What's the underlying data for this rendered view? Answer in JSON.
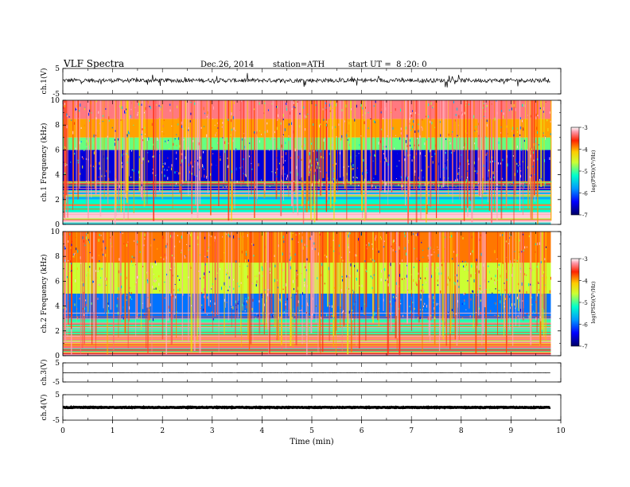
{
  "header": {
    "title": "VLF Spectra",
    "date": "Dec.26, 2014",
    "station": "station=ATH",
    "start": "start UT =  8 :20: 0"
  },
  "palette": {
    "low": "#000066",
    "mid_low": "#0033ff",
    "mid": "#00ffcc",
    "mid_high": "#ccff33",
    "high": "#ff2200",
    "top": "#ffffff"
  },
  "chart_data": [
    {
      "type": "line",
      "name": "ch1-waveform",
      "ylabel": "ch.1(V)",
      "ylim": [
        -5,
        5
      ],
      "yticks": [
        "5",
        "-5"
      ],
      "baseline": 0.3,
      "amplitude": 1.6
    },
    {
      "type": "heatmap",
      "name": "ch1-spectrogram",
      "ylabel": "ch.1 Frequency (kHz)",
      "ylim": [
        0,
        10
      ],
      "yticks": [
        "0",
        "2",
        "4",
        "6",
        "8",
        "10"
      ],
      "colorbar": {
        "label": "log(PSD)(V²/Hz)",
        "range": [
          -7,
          -3
        ],
        "ticks": [
          "-7",
          "-6",
          "-5",
          "-4",
          "-3"
        ]
      },
      "bands_khz": [
        {
          "from": 0.0,
          "to": 1.0,
          "level": -3.6
        },
        {
          "from": 1.0,
          "to": 2.0,
          "level": -5.8
        },
        {
          "from": 2.0,
          "to": 2.6,
          "level": -6.1
        },
        {
          "from": 2.6,
          "to": 6.0,
          "level": -6.7
        },
        {
          "from": 6.0,
          "to": 7.0,
          "level": -5.6
        },
        {
          "from": 7.0,
          "to": 8.5,
          "level": -4.9
        },
        {
          "from": 8.5,
          "to": 10.0,
          "level": -4.3
        }
      ]
    },
    {
      "type": "heatmap",
      "name": "ch2-spectrogram",
      "ylabel": "ch.2 Frequency (kHz)",
      "ylim": [
        0,
        10
      ],
      "yticks": [
        "0",
        "2",
        "4",
        "6",
        "8",
        "10"
      ],
      "colorbar": {
        "label": "log(PSD)(V²/Hz)",
        "range": [
          -7,
          -3
        ],
        "ticks": [
          "-7",
          "-6",
          "-5",
          "-4",
          "-3"
        ]
      },
      "bands_khz": [
        {
          "from": 0.0,
          "to": 0.2,
          "level": -7.0
        },
        {
          "from": 0.2,
          "to": 1.6,
          "level": -4.3
        },
        {
          "from": 1.6,
          "to": 3.0,
          "level": -5.7
        },
        {
          "from": 3.0,
          "to": 5.0,
          "level": -6.3
        },
        {
          "from": 5.0,
          "to": 7.5,
          "level": -5.4
        },
        {
          "from": 7.5,
          "to": 10.0,
          "level": -4.8
        }
      ]
    },
    {
      "type": "line",
      "name": "ch3-waveform",
      "ylabel": "ch.3(V)",
      "ylim": [
        -5,
        5
      ],
      "yticks": [
        "5",
        "-5"
      ],
      "baseline": -0.2,
      "amplitude": 0.15
    },
    {
      "type": "line",
      "name": "ch4-waveform",
      "ylabel": "ch.4(V)",
      "ylim": [
        -5,
        5
      ],
      "yticks": [
        "5",
        "-5"
      ],
      "baseline": 0.0,
      "amplitude": 0.25
    }
  ],
  "x_axis": {
    "label": "Time (min)",
    "xlim": [
      0,
      10
    ],
    "data_end": 9.8,
    "ticks": [
      "0",
      "1",
      "2",
      "3",
      "4",
      "5",
      "6",
      "7",
      "8",
      "9",
      "10"
    ]
  }
}
